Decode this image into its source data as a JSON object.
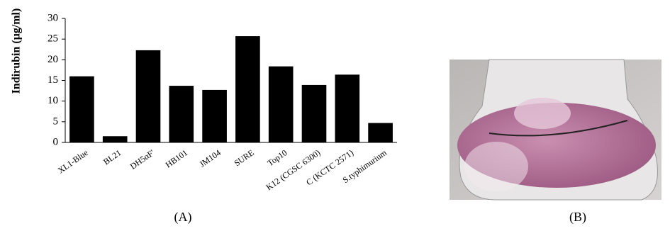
{
  "chart_data": {
    "type": "bar",
    "y_label": "Indirubin (μg/ml)",
    "categories": [
      "XL1-Blue",
      "BL21",
      "DH5αF'",
      "HB101",
      "JM104",
      "SURE",
      "Top10",
      "K12 (CGSC 6300)",
      "C (KCTC 2571)",
      "S.typhimurium"
    ],
    "values": [
      16,
      1.5,
      22.3,
      13.7,
      12.7,
      25.7,
      18.4,
      13.9,
      16.4,
      4.7
    ],
    "color": "#000000",
    "ylim": [
      0,
      30
    ],
    "yticks": [
      0,
      5,
      10,
      15,
      20,
      25,
      30
    ]
  },
  "panel_labels": [
    "(A)",
    "(B)"
  ]
}
